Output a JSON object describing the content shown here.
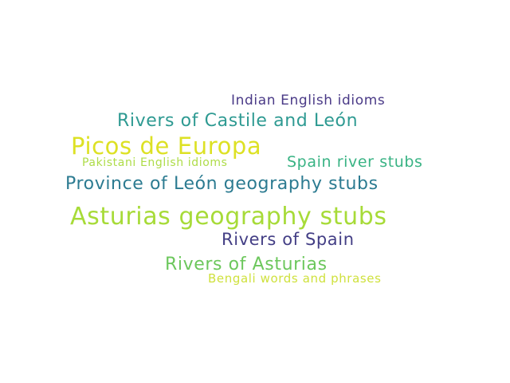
{
  "words": [
    {
      "text": "Indian English idioms",
      "color": "#4a3a87"
    },
    {
      "text": "Rivers of Castile and León",
      "color": "#2e9a92"
    },
    {
      "text": "Picos de Europa",
      "color": "#dde124"
    },
    {
      "text": "Pakistani English idioms",
      "color": "#aedc48"
    },
    {
      "text": "Spain river stubs",
      "color": "#39b384"
    },
    {
      "text": "Province of León geography stubs",
      "color": "#2c7b91"
    },
    {
      "text": "Asturias geography stubs",
      "color": "#a7db38"
    },
    {
      "text": "Rivers of Spain",
      "color": "#433e85"
    },
    {
      "text": "Rivers of Asturias",
      "color": "#6cc75c"
    },
    {
      "text": "Bengali words and phrases",
      "color": "#cfe13d"
    }
  ]
}
